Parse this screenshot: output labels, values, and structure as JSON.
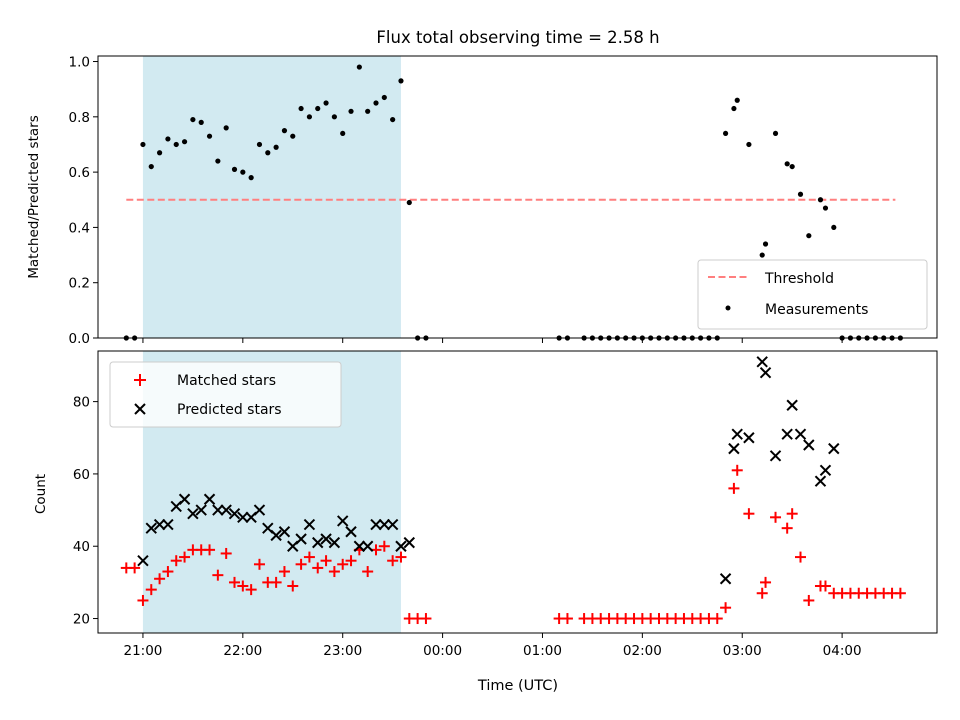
{
  "figure": {
    "title": "Flux total observing time = 2.58 h",
    "xlabel": "Time (UTC)"
  },
  "colors": {
    "threshold": "#ff7f7f",
    "measurements": "#000000",
    "matched": "#ff0000",
    "predicted": "#000000",
    "shaded": "#add8e6"
  },
  "chart_data": [
    {
      "type": "scatter",
      "ylabel": "Matched/Predicted stars",
      "ylim": [
        0,
        1.02
      ],
      "yticks": [
        0.0,
        0.2,
        0.4,
        0.6,
        0.8,
        1.0
      ],
      "ytick_labels": [
        "0.0",
        "0.2",
        "0.4",
        "0.6",
        "0.8",
        "1.0"
      ],
      "xlim_hours": [
        20.55,
        28.95
      ],
      "xticks_hours": [
        21,
        22,
        23,
        24,
        25,
        26,
        27,
        28
      ],
      "shaded_span": [
        "21:00",
        "23:35"
      ],
      "legend": {
        "position": "lower right",
        "entries": [
          "Threshold",
          "Measurements"
        ]
      },
      "threshold": {
        "name": "Threshold",
        "value": 0.5,
        "from": "20:50",
        "to": "04:32"
      },
      "series": [
        {
          "name": "Measurements",
          "points": [
            [
              "20:50",
              0.0
            ],
            [
              "20:55",
              0.0
            ],
            [
              "21:00",
              0.7
            ],
            [
              "21:05",
              0.62
            ],
            [
              "21:10",
              0.67
            ],
            [
              "21:15",
              0.72
            ],
            [
              "21:20",
              0.7
            ],
            [
              "21:25",
              0.71
            ],
            [
              "21:30",
              0.79
            ],
            [
              "21:35",
              0.78
            ],
            [
              "21:40",
              0.73
            ],
            [
              "21:45",
              0.64
            ],
            [
              "21:50",
              0.76
            ],
            [
              "21:55",
              0.61
            ],
            [
              "22:00",
              0.6
            ],
            [
              "22:05",
              0.58
            ],
            [
              "22:10",
              0.7
            ],
            [
              "22:15",
              0.67
            ],
            [
              "22:20",
              0.69
            ],
            [
              "22:25",
              0.75
            ],
            [
              "22:30",
              0.73
            ],
            [
              "22:35",
              0.83
            ],
            [
              "22:40",
              0.8
            ],
            [
              "22:45",
              0.83
            ],
            [
              "22:50",
              0.85
            ],
            [
              "22:55",
              0.8
            ],
            [
              "23:00",
              0.74
            ],
            [
              "23:05",
              0.82
            ],
            [
              "23:10",
              0.98
            ],
            [
              "23:15",
              0.82
            ],
            [
              "23:20",
              0.85
            ],
            [
              "23:25",
              0.87
            ],
            [
              "23:30",
              0.79
            ],
            [
              "23:35",
              0.93
            ],
            [
              "23:40",
              0.49
            ],
            [
              "23:45",
              0.0
            ],
            [
              "23:50",
              0.0
            ],
            [
              "01:10",
              0.0
            ],
            [
              "01:15",
              0.0
            ],
            [
              "01:25",
              0.0
            ],
            [
              "01:30",
              0.0
            ],
            [
              "01:35",
              0.0
            ],
            [
              "01:40",
              0.0
            ],
            [
              "01:45",
              0.0
            ],
            [
              "01:50",
              0.0
            ],
            [
              "01:55",
              0.0
            ],
            [
              "02:00",
              0.0
            ],
            [
              "02:05",
              0.0
            ],
            [
              "02:10",
              0.0
            ],
            [
              "02:15",
              0.0
            ],
            [
              "02:20",
              0.0
            ],
            [
              "02:25",
              0.0
            ],
            [
              "02:30",
              0.0
            ],
            [
              "02:35",
              0.0
            ],
            [
              "02:40",
              0.0
            ],
            [
              "02:45",
              0.0
            ],
            [
              "02:50",
              0.74
            ],
            [
              "02:55",
              0.83
            ],
            [
              "02:57",
              0.86
            ],
            [
              "03:04",
              0.7
            ],
            [
              "03:12",
              0.3
            ],
            [
              "03:14",
              0.34
            ],
            [
              "03:20",
              0.74
            ],
            [
              "03:27",
              0.63
            ],
            [
              "03:30",
              0.62
            ],
            [
              "03:35",
              0.52
            ],
            [
              "03:40",
              0.37
            ],
            [
              "03:47",
              0.5
            ],
            [
              "03:50",
              0.47
            ],
            [
              "03:55",
              0.4
            ],
            [
              "04:00",
              0.0
            ],
            [
              "04:05",
              0.0
            ],
            [
              "04:10",
              0.0
            ],
            [
              "04:15",
              0.0
            ],
            [
              "04:20",
              0.0
            ],
            [
              "04:25",
              0.0
            ],
            [
              "04:30",
              0.0
            ],
            [
              "04:35",
              0.0
            ]
          ]
        }
      ]
    },
    {
      "type": "scatter",
      "ylabel": "Count",
      "ylim": [
        16,
        94
      ],
      "yticks": [
        20,
        40,
        60,
        80
      ],
      "ytick_labels": [
        "20",
        "40",
        "60",
        "80"
      ],
      "xlim_hours": [
        20.55,
        28.95
      ],
      "xticks_hours": [
        21,
        22,
        23,
        24,
        25,
        26,
        27,
        28
      ],
      "xtick_labels": [
        "21:00",
        "22:00",
        "23:00",
        "00:00",
        "01:00",
        "02:00",
        "03:00",
        "04:00"
      ],
      "shaded_span": [
        "21:00",
        "23:35"
      ],
      "legend": {
        "position": "upper left",
        "entries": [
          "Matched stars",
          "Predicted stars"
        ]
      },
      "series": [
        {
          "name": "Matched stars",
          "marker": "plus",
          "points": [
            [
              "20:50",
              34
            ],
            [
              "20:55",
              34
            ],
            [
              "21:00",
              25
            ],
            [
              "21:05",
              28
            ],
            [
              "21:10",
              31
            ],
            [
              "21:15",
              33
            ],
            [
              "21:20",
              36
            ],
            [
              "21:25",
              37
            ],
            [
              "21:30",
              39
            ],
            [
              "21:35",
              39
            ],
            [
              "21:40",
              39
            ],
            [
              "21:45",
              32
            ],
            [
              "21:50",
              38
            ],
            [
              "21:55",
              30
            ],
            [
              "22:00",
              29
            ],
            [
              "22:05",
              28
            ],
            [
              "22:10",
              35
            ],
            [
              "22:15",
              30
            ],
            [
              "22:20",
              30
            ],
            [
              "22:25",
              33
            ],
            [
              "22:30",
              29
            ],
            [
              "22:35",
              35
            ],
            [
              "22:40",
              37
            ],
            [
              "22:45",
              34
            ],
            [
              "22:50",
              36
            ],
            [
              "22:55",
              33
            ],
            [
              "23:00",
              35
            ],
            [
              "23:05",
              36
            ],
            [
              "23:10",
              39
            ],
            [
              "23:15",
              33
            ],
            [
              "23:20",
              39
            ],
            [
              "23:25",
              40
            ],
            [
              "23:30",
              36
            ],
            [
              "23:35",
              37
            ],
            [
              "23:40",
              20
            ],
            [
              "23:45",
              20
            ],
            [
              "23:50",
              20
            ],
            [
              "01:10",
              20
            ],
            [
              "01:15",
              20
            ],
            [
              "01:25",
              20
            ],
            [
              "01:30",
              20
            ],
            [
              "01:35",
              20
            ],
            [
              "01:40",
              20
            ],
            [
              "01:45",
              20
            ],
            [
              "01:50",
              20
            ],
            [
              "01:55",
              20
            ],
            [
              "02:00",
              20
            ],
            [
              "02:05",
              20
            ],
            [
              "02:10",
              20
            ],
            [
              "02:15",
              20
            ],
            [
              "02:20",
              20
            ],
            [
              "02:25",
              20
            ],
            [
              "02:30",
              20
            ],
            [
              "02:35",
              20
            ],
            [
              "02:40",
              20
            ],
            [
              "02:45",
              20
            ],
            [
              "02:50",
              23
            ],
            [
              "02:55",
              56
            ],
            [
              "02:57",
              61
            ],
            [
              "03:04",
              49
            ],
            [
              "03:12",
              27
            ],
            [
              "03:14",
              30
            ],
            [
              "03:20",
              48
            ],
            [
              "03:27",
              45
            ],
            [
              "03:30",
              49
            ],
            [
              "03:35",
              37
            ],
            [
              "03:40",
              25
            ],
            [
              "03:47",
              29
            ],
            [
              "03:50",
              29
            ],
            [
              "03:55",
              27
            ],
            [
              "04:00",
              27
            ],
            [
              "04:05",
              27
            ],
            [
              "04:10",
              27
            ],
            [
              "04:15",
              27
            ],
            [
              "04:20",
              27
            ],
            [
              "04:25",
              27
            ],
            [
              "04:30",
              27
            ],
            [
              "04:35",
              27
            ]
          ]
        },
        {
          "name": "Predicted stars",
          "marker": "x",
          "points": [
            [
              "21:00",
              36
            ],
            [
              "21:05",
              45
            ],
            [
              "21:10",
              46
            ],
            [
              "21:15",
              46
            ],
            [
              "21:20",
              51
            ],
            [
              "21:25",
              53
            ],
            [
              "21:30",
              49
            ],
            [
              "21:35",
              50
            ],
            [
              "21:40",
              53
            ],
            [
              "21:45",
              50
            ],
            [
              "21:50",
              50
            ],
            [
              "21:55",
              49
            ],
            [
              "22:00",
              48
            ],
            [
              "22:05",
              48
            ],
            [
              "22:10",
              50
            ],
            [
              "22:15",
              45
            ],
            [
              "22:20",
              43
            ],
            [
              "22:25",
              44
            ],
            [
              "22:30",
              40
            ],
            [
              "22:35",
              42
            ],
            [
              "22:40",
              46
            ],
            [
              "22:45",
              41
            ],
            [
              "22:50",
              42
            ],
            [
              "22:55",
              41
            ],
            [
              "23:00",
              47
            ],
            [
              "23:05",
              44
            ],
            [
              "23:10",
              40
            ],
            [
              "23:15",
              40
            ],
            [
              "23:20",
              46
            ],
            [
              "23:25",
              46
            ],
            [
              "23:30",
              46
            ],
            [
              "23:35",
              40
            ],
            [
              "23:40",
              41
            ],
            [
              "02:50",
              31
            ],
            [
              "02:55",
              67
            ],
            [
              "02:57",
              71
            ],
            [
              "03:04",
              70
            ],
            [
              "03:12",
              91
            ],
            [
              "03:14",
              88
            ],
            [
              "03:20",
              65
            ],
            [
              "03:27",
              71
            ],
            [
              "03:30",
              79
            ],
            [
              "03:35",
              71
            ],
            [
              "03:40",
              68
            ],
            [
              "03:47",
              58
            ],
            [
              "03:50",
              61
            ],
            [
              "03:55",
              67
            ]
          ]
        }
      ]
    }
  ]
}
